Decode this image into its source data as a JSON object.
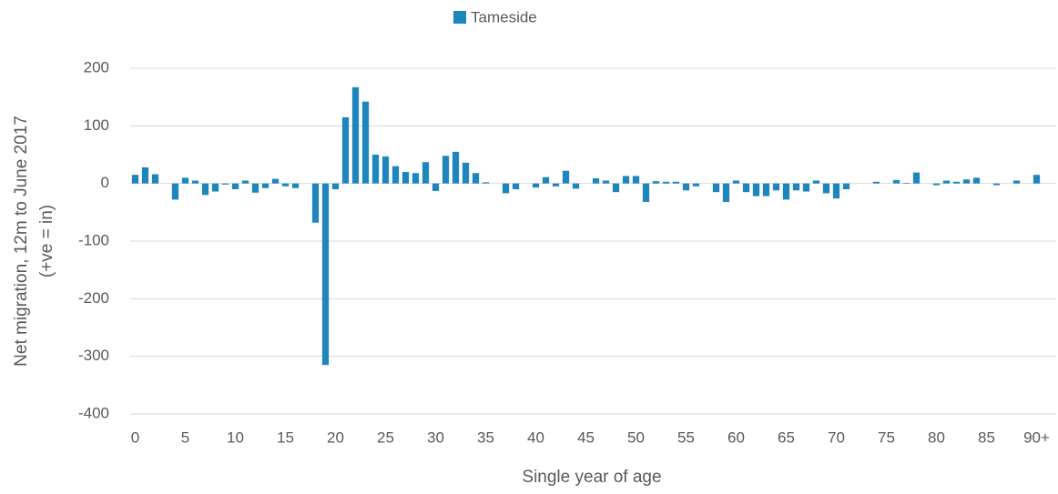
{
  "chart_data": {
    "type": "bar",
    "legend": "Tameside",
    "xlabel": "Single year of age",
    "ylabel": [
      "Net migration, 12m to June 2017",
      "(+ve = in)"
    ],
    "color": "#1f86bd",
    "categories": [
      "0",
      null,
      null,
      null,
      null,
      "5",
      null,
      null,
      null,
      null,
      "10",
      null,
      null,
      null,
      null,
      "15",
      null,
      null,
      null,
      null,
      "20",
      null,
      null,
      null,
      null,
      "25",
      null,
      null,
      null,
      null,
      "30",
      null,
      null,
      null,
      null,
      "35",
      null,
      null,
      null,
      null,
      "40",
      null,
      null,
      null,
      null,
      "45",
      null,
      null,
      null,
      null,
      "50",
      null,
      null,
      null,
      null,
      "55",
      null,
      null,
      null,
      null,
      "60",
      null,
      null,
      null,
      null,
      "65",
      null,
      null,
      null,
      null,
      "70",
      null,
      null,
      null,
      null,
      "75",
      null,
      null,
      null,
      null,
      "80",
      null,
      null,
      null,
      null,
      "85",
      null,
      null,
      null,
      null,
      "90+"
    ],
    "values": [
      15,
      28,
      16,
      0,
      -28,
      10,
      5,
      -20,
      -14,
      -2,
      -10,
      5,
      -16,
      -8,
      8,
      -5,
      -8,
      0,
      -68,
      -315,
      -10,
      115,
      167,
      142,
      50,
      47,
      30,
      20,
      18,
      37,
      -13,
      48,
      55,
      36,
      18,
      2,
      0,
      -17,
      -10,
      0,
      -7,
      11,
      -5,
      22,
      -9,
      0,
      9,
      5,
      -15,
      13,
      13,
      -32,
      4,
      3,
      3,
      -12,
      -5,
      0,
      -15,
      -32,
      5,
      -15,
      -22,
      -22,
      -12,
      -28,
      -12,
      -14,
      5,
      -17,
      -26,
      -10,
      0,
      0,
      3,
      0,
      6,
      1,
      19,
      0,
      -3,
      5,
      3,
      7,
      10,
      0,
      -3,
      0,
      5,
      0,
      15
    ],
    "ylim": [
      -400,
      200
    ],
    "yticks": [
      -400,
      -300,
      -200,
      -100,
      0,
      100,
      200
    ],
    "grid": true
  }
}
